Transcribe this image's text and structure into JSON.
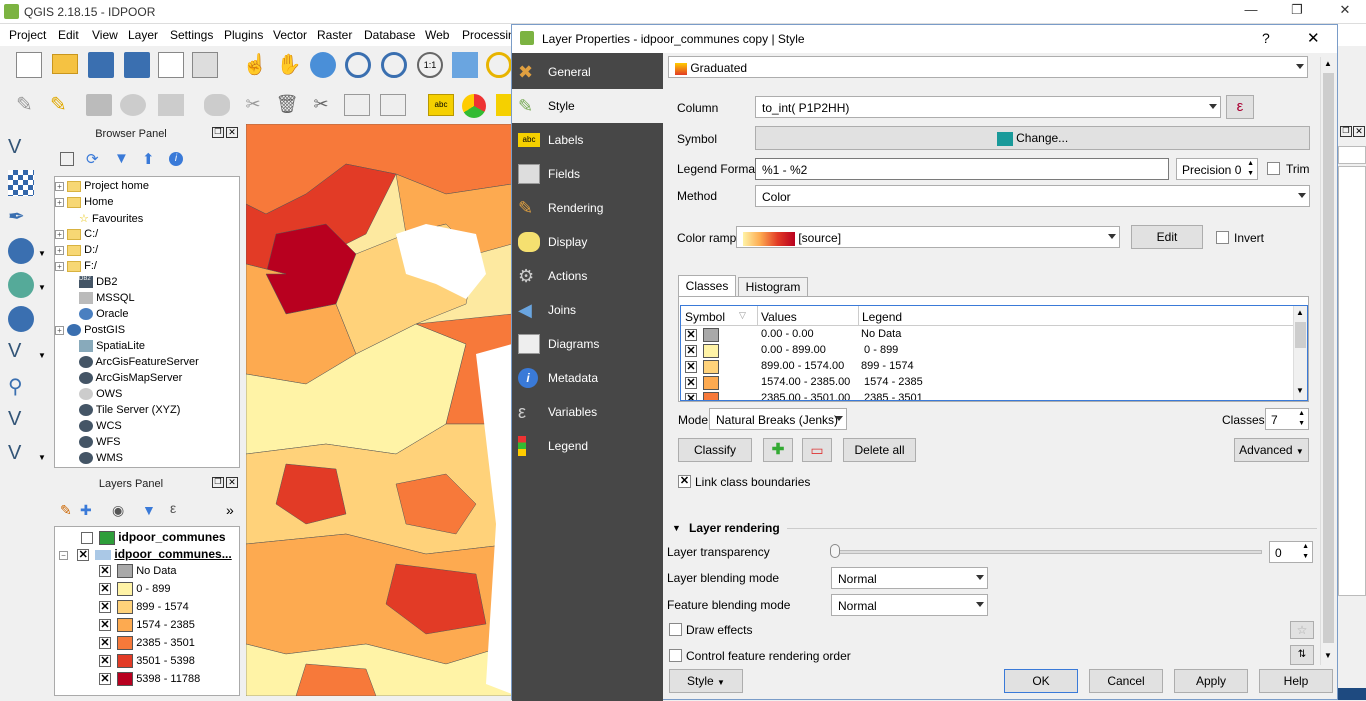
{
  "window": {
    "title": "QGIS 2.18.15 - IDPOOR"
  },
  "menu": [
    "Project",
    "Edit",
    "View",
    "Layer",
    "Settings",
    "Plugins",
    "Vector",
    "Raster",
    "Database",
    "Web",
    "Processing"
  ],
  "browser": {
    "title": "Browser Panel",
    "items": [
      "Project home",
      "Home",
      "Favourites",
      "C:/",
      "D:/",
      "F:/",
      "DB2",
      "MSSQL",
      "Oracle",
      "PostGIS",
      "SpatiaLite",
      "ArcGisFeatureServer",
      "ArcGisMapServer",
      "OWS",
      "Tile Server (XYZ)",
      "WCS",
      "WFS",
      "WMS"
    ]
  },
  "layers": {
    "title": "Layers Panel",
    "layer1": "idpoor_communes",
    "layer2": "idpoor_communes...",
    "classes": [
      {
        "label": "No Data",
        "color": "#a9a9a9"
      },
      {
        "label": "0 - 899",
        "color": "#fff3a6"
      },
      {
        "label": "899 - 1574",
        "color": "#ffd27a"
      },
      {
        "label": "1574 - 2385",
        "color": "#fdaa50"
      },
      {
        "label": "2385 - 3501",
        "color": "#f7793a"
      },
      {
        "label": "3501 - 5398",
        "color": "#e23b26"
      },
      {
        "label": "5398 - 11788",
        "color": "#b8001f"
      }
    ]
  },
  "dialog": {
    "title": "Layer Properties - idpoor_communes copy | Style",
    "help": "?",
    "close": "✕",
    "nav": [
      "General",
      "Style",
      "Labels",
      "Fields",
      "Rendering",
      "Display",
      "Actions",
      "Joins",
      "Diagrams",
      "Metadata",
      "Variables",
      "Legend"
    ],
    "renderer": "Graduated",
    "column_label": "Column",
    "column_value": "to_int( P1P2HH)",
    "expr": "ε",
    "symbol_label": "Symbol",
    "symbol_btn": "Change...",
    "legend_format_label": "Legend Format",
    "legend_format_value": "%1 - %2",
    "precision": "Precision 0",
    "trim": "Trim",
    "method_label": "Method",
    "method_value": "Color",
    "ramp_label": "Color ramp",
    "ramp_value": "[source]",
    "edit_btn": "Edit",
    "invert": "Invert",
    "tab_classes": "Classes",
    "tab_histogram": "Histogram",
    "headers": [
      "Symbol",
      "Values",
      "Legend"
    ],
    "rows": [
      {
        "values": "0.00 - 0.00",
        "legend": "No Data",
        "color": "#a9a9a9"
      },
      {
        "values": "0.00 - 899.00",
        "legend": " 0 - 899",
        "color": "#fff3a6"
      },
      {
        "values": "899.00 - 1574.00",
        "legend": "899 - 1574",
        "color": "#ffd27a"
      },
      {
        "values": "1574.00 - 2385.00",
        "legend": " 1574 - 2385",
        "color": "#fdaa50"
      },
      {
        "values": "2385.00 - 3501.00",
        "legend": " 2385 - 3501",
        "color": "#f7793a"
      }
    ],
    "mode_label": "Mode",
    "mode_value": "Natural Breaks (Jenks)",
    "classes_label": "Classes",
    "classes_value": "7",
    "classify_btn": "Classify",
    "delete_all_btn": "Delete all",
    "advanced_btn": "Advanced",
    "link_boundaries": "Link class boundaries",
    "layer_rendering": "Layer rendering",
    "transparency_label": "Layer transparency",
    "transparency_value": "0",
    "blend_label": "Layer blending mode",
    "blend_value": "Normal",
    "feature_blend_label": "Feature blending mode",
    "feature_blend_value": "Normal",
    "draw_effects": "Draw effects",
    "control_order": "Control feature rendering order",
    "style_btn": "Style",
    "ok_btn": "OK",
    "cancel_btn": "Cancel",
    "apply_btn": "Apply",
    "help_btn": "Help"
  }
}
